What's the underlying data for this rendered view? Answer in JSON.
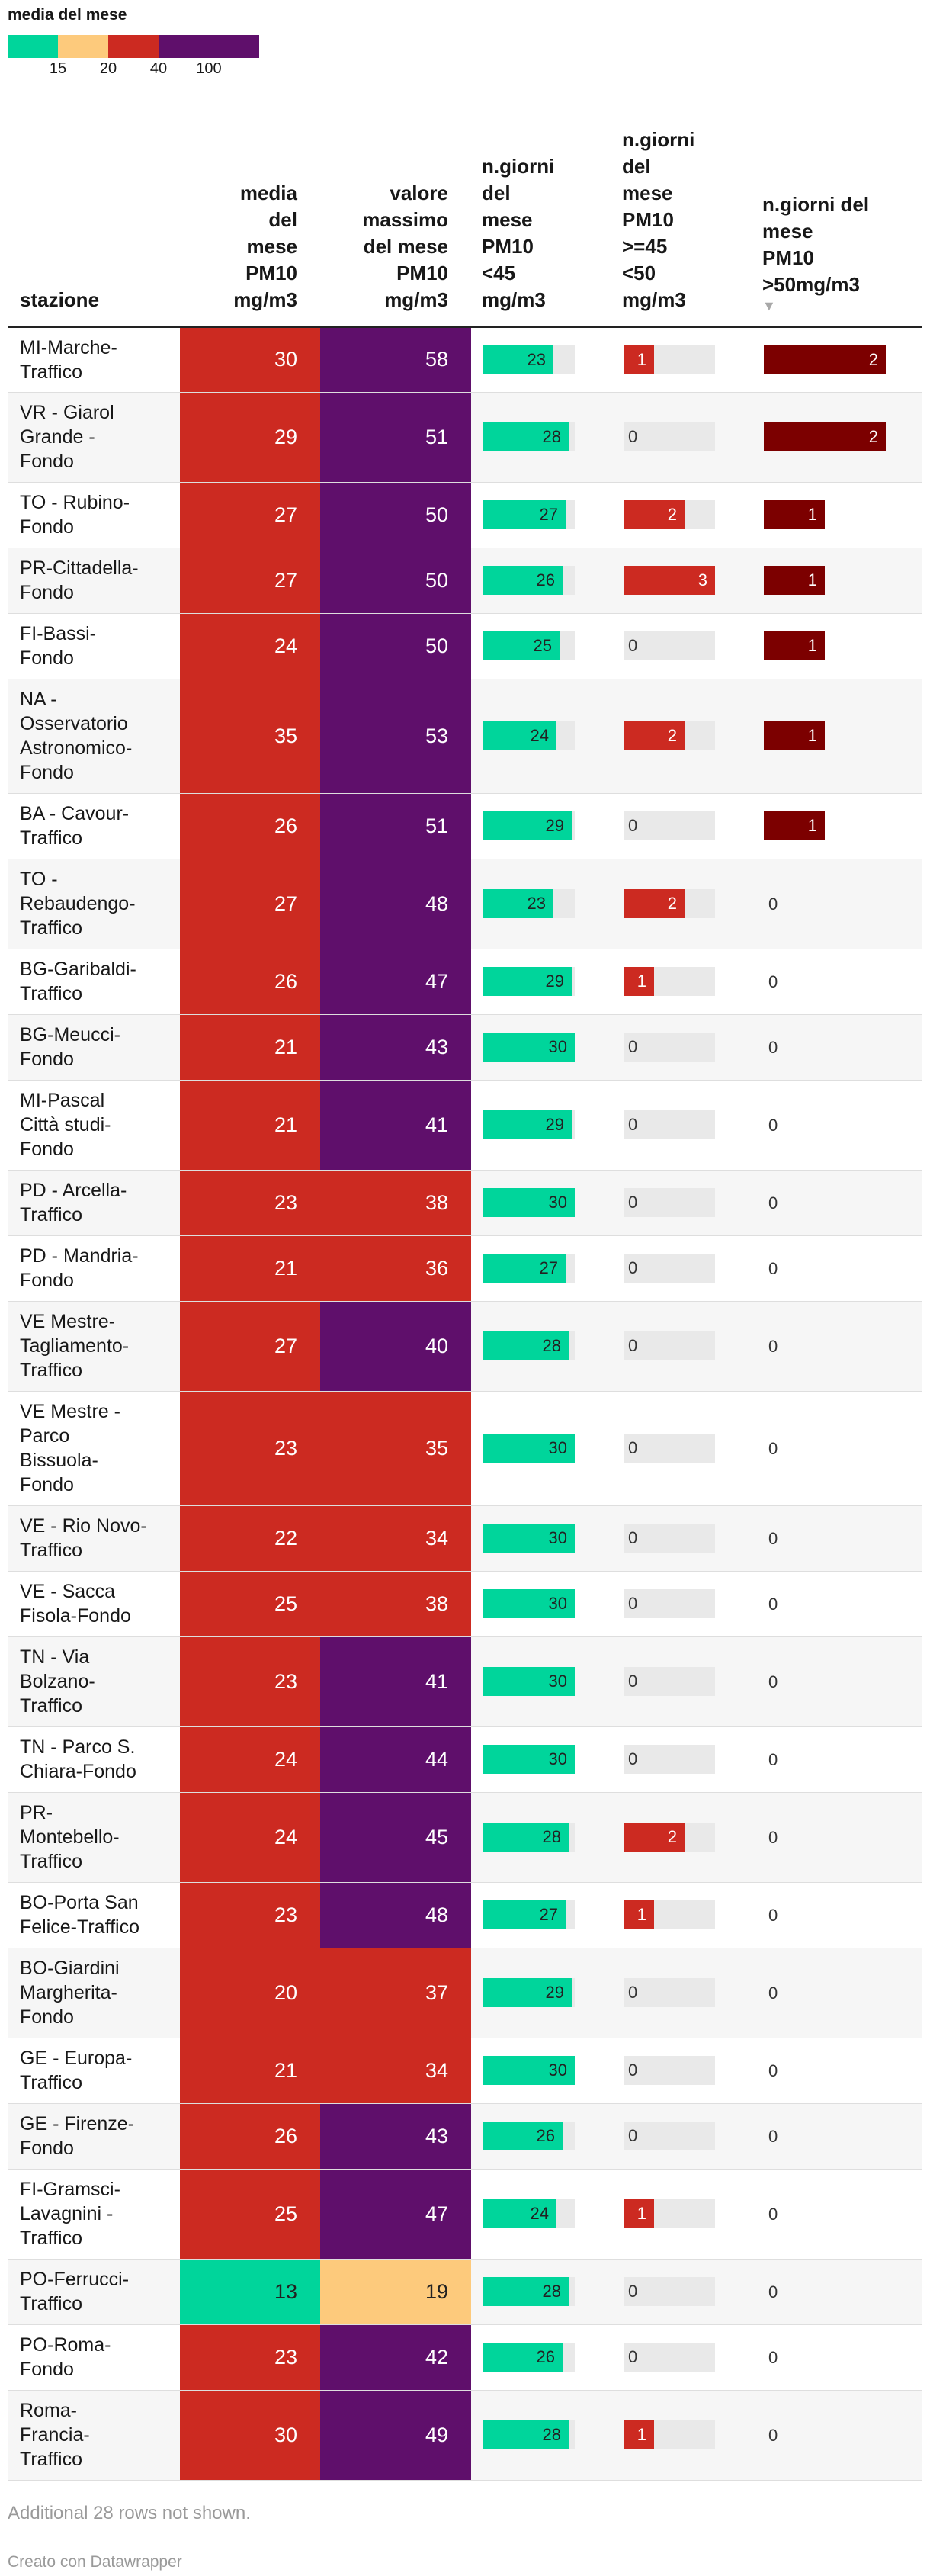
{
  "legend": {
    "title": "media del mese",
    "colors": [
      "#00d59b",
      "#fdca7c",
      "#cc2a21",
      "#5f0f6b",
      "#5f0f6b"
    ],
    "tick_labels": [
      "15",
      "20",
      "40",
      "100"
    ]
  },
  "columns": {
    "stazione": "stazione",
    "media_lines": [
      "media",
      "del",
      "mese",
      "PM10",
      "mg/m3"
    ],
    "max_lines": [
      "valore",
      "massimo",
      "del mese",
      "PM10",
      "mg/m3"
    ],
    "b1_lines": [
      "n.giorni",
      "del",
      "mese",
      "PM10",
      "<45",
      "mg/m3"
    ],
    "b2_lines": [
      "n.giorni",
      "del",
      "mese",
      "PM10",
      ">=45",
      "<50",
      "mg/m3"
    ],
    "b3_lines": [
      "n.giorni del",
      "mese",
      "PM10",
      ">50mg/m3"
    ],
    "sort_icon": "sort-down-icon"
  },
  "colors": {
    "green": "#00d59b",
    "orange": "#fdca7c",
    "red": "#cc2a21",
    "purple": "#5f0f6b",
    "darkred": "#7c0000"
  },
  "chart_data": {
    "type": "table",
    "columns": [
      "stazione",
      "media del mese PM10 mg/m3",
      "valore massimo del mese PM10 mg/m3",
      "n.giorni del mese PM10 <45 mg/m3",
      "n.giorni del mese PM10 >=45 <50 mg/m3",
      "n.giorni del mese PM10 >50mg/m3"
    ],
    "rows": [
      {
        "stazione": [
          "MI-Marche-",
          "Traffico"
        ],
        "media": 30,
        "massimo": 58,
        "lt45": 23,
        "b45_50": 1,
        "gt50": 2
      },
      {
        "stazione": [
          "VR - Giarol",
          "Grande -",
          "Fondo"
        ],
        "media": 29,
        "massimo": 51,
        "lt45": 28,
        "b45_50": 0,
        "gt50": 2
      },
      {
        "stazione": [
          "TO - Rubino-",
          "Fondo"
        ],
        "media": 27,
        "massimo": 50,
        "lt45": 27,
        "b45_50": 2,
        "gt50": 1
      },
      {
        "stazione": [
          "PR-Cittadella-",
          "Fondo"
        ],
        "media": 27,
        "massimo": 50,
        "lt45": 26,
        "b45_50": 3,
        "gt50": 1
      },
      {
        "stazione": [
          "FI-Bassi-",
          "Fondo"
        ],
        "media": 24,
        "massimo": 50,
        "lt45": 25,
        "b45_50": 0,
        "gt50": 1
      },
      {
        "stazione": [
          "NA -",
          "Osservatorio",
          "Astronomico-",
          "Fondo"
        ],
        "media": 35,
        "massimo": 53,
        "lt45": 24,
        "b45_50": 2,
        "gt50": 1
      },
      {
        "stazione": [
          "BA - Cavour-",
          "Traffico"
        ],
        "media": 26,
        "massimo": 51,
        "lt45": 29,
        "b45_50": 0,
        "gt50": 1
      },
      {
        "stazione": [
          "TO -",
          "Rebaudengo-",
          "Traffico"
        ],
        "media": 27,
        "massimo": 48,
        "lt45": 23,
        "b45_50": 2,
        "gt50": 0
      },
      {
        "stazione": [
          "BG-Garibaldi-",
          "Traffico"
        ],
        "media": 26,
        "massimo": 47,
        "lt45": 29,
        "b45_50": 1,
        "gt50": 0
      },
      {
        "stazione": [
          "BG-Meucci-",
          "Fondo"
        ],
        "media": 21,
        "massimo": 43,
        "lt45": 30,
        "b45_50": 0,
        "gt50": 0
      },
      {
        "stazione": [
          "MI-Pascal",
          "Città studi-",
          "Fondo"
        ],
        "media": 21,
        "massimo": 41,
        "lt45": 29,
        "b45_50": 0,
        "gt50": 0
      },
      {
        "stazione": [
          "PD - Arcella-",
          "Traffico"
        ],
        "media": 23,
        "massimo": 38,
        "lt45": 30,
        "b45_50": 0,
        "gt50": 0
      },
      {
        "stazione": [
          "PD - Mandria-",
          "Fondo"
        ],
        "media": 21,
        "massimo": 36,
        "lt45": 27,
        "b45_50": 0,
        "gt50": 0
      },
      {
        "stazione": [
          "VE Mestre-",
          "Tagliamento-",
          "Traffico"
        ],
        "media": 27,
        "massimo": 40,
        "lt45": 28,
        "b45_50": 0,
        "gt50": 0
      },
      {
        "stazione": [
          "VE Mestre -",
          "Parco",
          "Bissuola-",
          "Fondo"
        ],
        "media": 23,
        "massimo": 35,
        "lt45": 30,
        "b45_50": 0,
        "gt50": 0
      },
      {
        "stazione": [
          "VE - Rio Novo-",
          "Traffico"
        ],
        "media": 22,
        "massimo": 34,
        "lt45": 30,
        "b45_50": 0,
        "gt50": 0
      },
      {
        "stazione": [
          "VE - Sacca",
          "Fisola-Fondo"
        ],
        "media": 25,
        "massimo": 38,
        "lt45": 30,
        "b45_50": 0,
        "gt50": 0
      },
      {
        "stazione": [
          "TN - Via",
          "Bolzano-",
          "Traffico"
        ],
        "media": 23,
        "massimo": 41,
        "lt45": 30,
        "b45_50": 0,
        "gt50": 0
      },
      {
        "stazione": [
          "TN - Parco S.",
          "Chiara-Fondo"
        ],
        "media": 24,
        "massimo": 44,
        "lt45": 30,
        "b45_50": 0,
        "gt50": 0
      },
      {
        "stazione": [
          "PR-",
          "Montebello-",
          "Traffico"
        ],
        "media": 24,
        "massimo": 45,
        "lt45": 28,
        "b45_50": 2,
        "gt50": 0
      },
      {
        "stazione": [
          "BO-Porta San",
          "Felice-Traffico"
        ],
        "media": 23,
        "massimo": 48,
        "lt45": 27,
        "b45_50": 1,
        "gt50": 0
      },
      {
        "stazione": [
          "BO-Giardini",
          "Margherita-",
          "Fondo"
        ],
        "media": 20,
        "massimo": 37,
        "lt45": 29,
        "b45_50": 0,
        "gt50": 0
      },
      {
        "stazione": [
          "GE - Europa-",
          "Traffico"
        ],
        "media": 21,
        "massimo": 34,
        "lt45": 30,
        "b45_50": 0,
        "gt50": 0
      },
      {
        "stazione": [
          "GE - Firenze-",
          "Fondo"
        ],
        "media": 26,
        "massimo": 43,
        "lt45": 26,
        "b45_50": 0,
        "gt50": 0
      },
      {
        "stazione": [
          "FI-Gramsci-",
          "Lavagnini -",
          "Traffico"
        ],
        "media": 25,
        "massimo": 47,
        "lt45": 24,
        "b45_50": 1,
        "gt50": 0
      },
      {
        "stazione": [
          "PO-Ferrucci-",
          "Traffico"
        ],
        "media": 13,
        "massimo": 19,
        "lt45": 28,
        "b45_50": 0,
        "gt50": 0
      },
      {
        "stazione": [
          "PO-Roma-",
          "Fondo"
        ],
        "media": 23,
        "massimo": 42,
        "lt45": 26,
        "b45_50": 0,
        "gt50": 0
      },
      {
        "stazione": [
          "Roma-",
          "Francia-",
          "Traffico"
        ],
        "media": 30,
        "massimo": 49,
        "lt45": 28,
        "b45_50": 1,
        "gt50": 0
      }
    ],
    "color_scale": {
      "title": "media del mese",
      "thresholds": [
        15,
        20,
        40,
        100
      ],
      "colors": [
        "#00d59b",
        "#fdca7c",
        "#cc2a21",
        "#5f0f6b",
        "#5f0f6b"
      ]
    },
    "bar_max": {
      "lt45": 30,
      "b45_50": 3,
      "gt50": 2
    }
  },
  "footer": {
    "notes": "Additional 28 rows not shown.",
    "credit": "Creato con Datawrapper"
  }
}
